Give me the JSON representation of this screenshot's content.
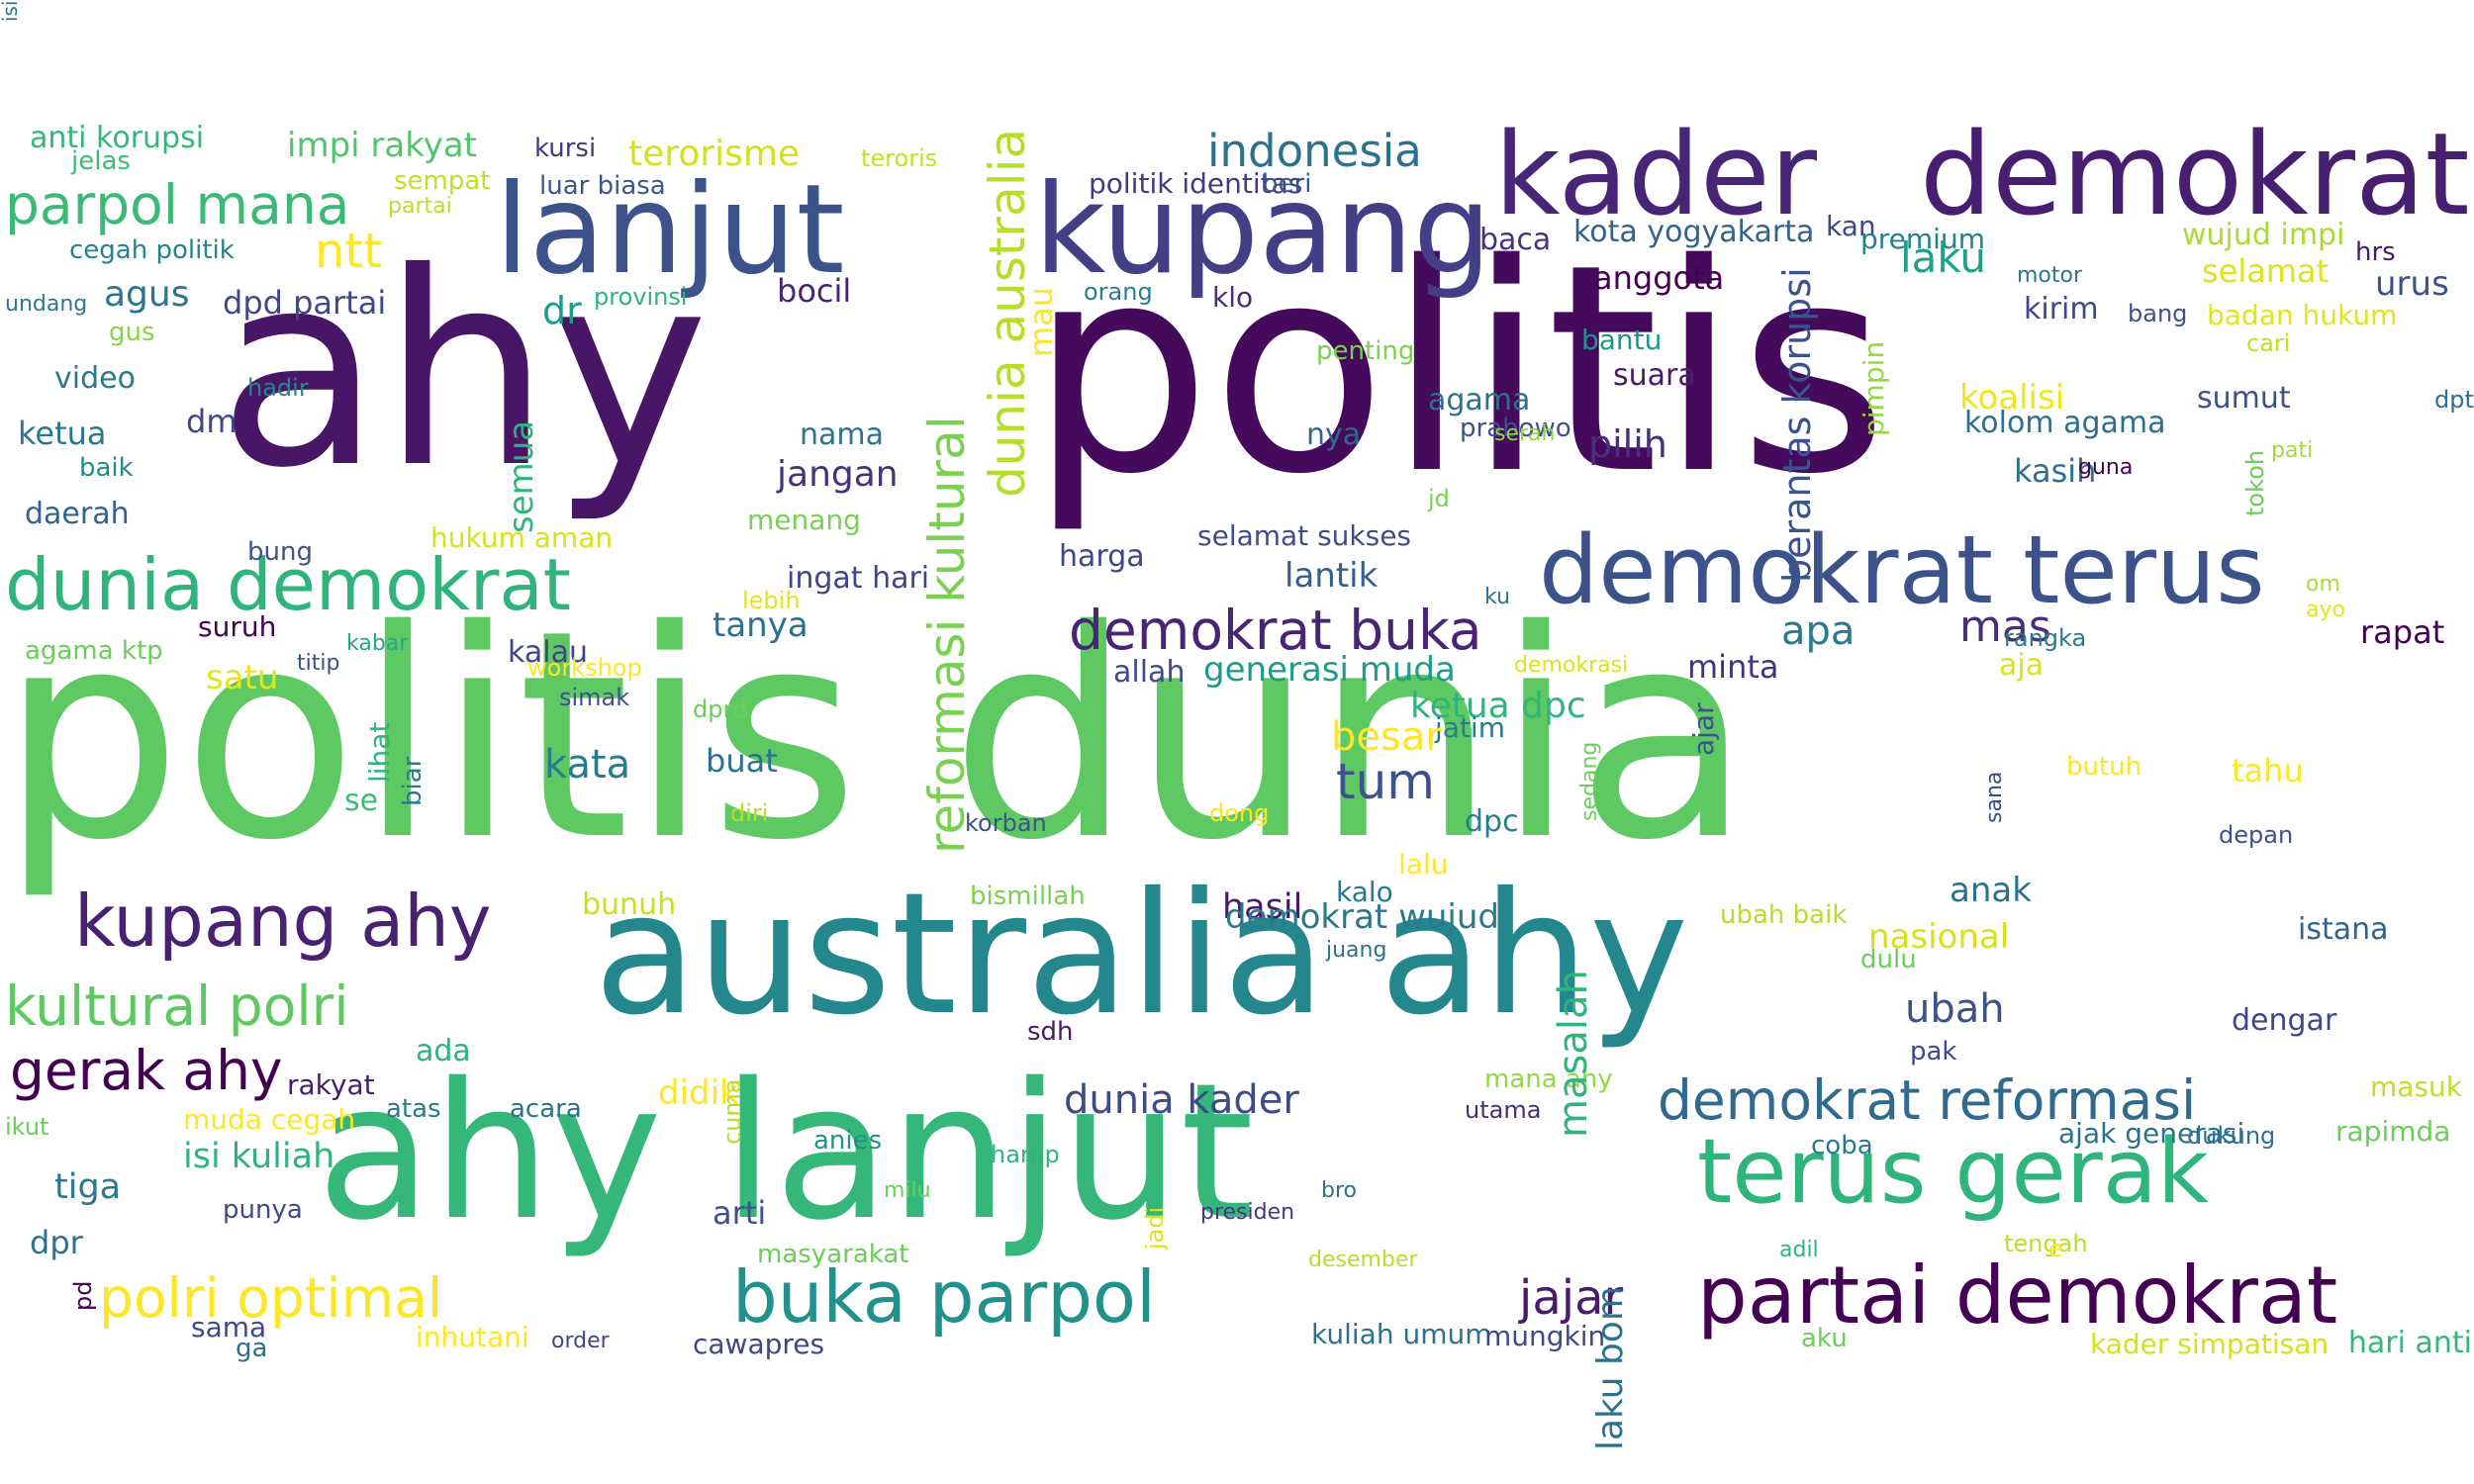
{
  "colors": {
    "background": "#ffffff",
    "palette": [
      "#440154",
      "#3b528b",
      "#21918c",
      "#5ec962",
      "#fde725"
    ]
  },
  "words": [
    {
      "text": "politis dunia",
      "color": "#5ec962",
      "vertical": false
    },
    {
      "text": "ahy",
      "color": "#481567",
      "vertical": false
    },
    {
      "text": "politis",
      "color": "#450a5c",
      "vertical": false
    },
    {
      "text": "australia ahy",
      "color": "#24878e",
      "vertical": false
    },
    {
      "text": "ahy lanjut",
      "color": "#35b779",
      "vertical": false
    },
    {
      "text": "lanjut",
      "color": "#3b528b",
      "vertical": false
    },
    {
      "text": "kupang",
      "color": "#433e85",
      "vertical": false
    },
    {
      "text": "kader",
      "color": "#482576",
      "vertical": false
    },
    {
      "text": "demokrat",
      "color": "#481f70",
      "vertical": false
    },
    {
      "text": "demokrat terus",
      "color": "#3b528b",
      "vertical": false
    },
    {
      "text": "terus gerak",
      "color": "#2fb47c",
      "vertical": false
    },
    {
      "text": "partai demokrat",
      "color": "#440154",
      "vertical": false
    },
    {
      "text": "dunia demokrat",
      "color": "#2fb47c",
      "vertical": false
    },
    {
      "text": "kupang ahy",
      "color": "#482173",
      "vertical": false
    },
    {
      "text": "buka parpol",
      "color": "#21918c",
      "vertical": false
    },
    {
      "text": "kultural polri",
      "color": "#5ec962",
      "vertical": false
    },
    {
      "text": "parpol mana",
      "color": "#3aba76",
      "vertical": false
    },
    {
      "text": "demokrat buka",
      "color": "#482475",
      "vertical": false
    },
    {
      "text": "demokrat reformasi",
      "color": "#306a8e",
      "vertical": false
    },
    {
      "text": "gerak ahy",
      "color": "#440154",
      "vertical": false
    },
    {
      "text": "polri optimal",
      "color": "#fde725",
      "vertical": false
    },
    {
      "text": "reformasi kultural",
      "color": "#7ad151",
      "vertical": true
    },
    {
      "text": "dunia australia",
      "color": "#b5de2b",
      "vertical": true
    },
    {
      "text": "indonesia",
      "color": "#2c728e",
      "vertical": false
    },
    {
      "text": "tum",
      "color": "#3b528b",
      "vertical": false
    },
    {
      "text": "ntt",
      "color": "#fde725",
      "vertical": false
    },
    {
      "text": "dunia kader",
      "color": "#3e4a89",
      "vertical": false
    },
    {
      "text": "anti korupsi",
      "color": "#35b779",
      "vertical": false
    },
    {
      "text": "impi rakyat",
      "color": "#52c569",
      "vertical": false
    },
    {
      "text": "terorisme",
      "color": "#d2e21b",
      "vertical": false
    },
    {
      "text": "teroris",
      "color": "#c8e020",
      "vertical": false
    },
    {
      "text": "politik identitas",
      "color": "#443983",
      "vertical": false
    },
    {
      "text": "beri",
      "color": "#39568c",
      "vertical": false
    },
    {
      "text": "kan",
      "color": "#3f4788",
      "vertical": false
    },
    {
      "text": "jelas",
      "color": "#3dbc74",
      "vertical": false
    },
    {
      "text": "sempat",
      "color": "#c2df23",
      "vertical": false
    },
    {
      "text": "luar biasa",
      "color": "#38588c",
      "vertical": false
    },
    {
      "text": "kursi",
      "color": "#453781",
      "vertical": false
    },
    {
      "text": "partai",
      "color": "#b8de29",
      "vertical": false
    },
    {
      "text": "cegah politik",
      "color": "#26828e",
      "vertical": false
    },
    {
      "text": "baca",
      "color": "#46327e",
      "vertical": false
    },
    {
      "text": "kota yogyakarta",
      "color": "#33638d",
      "vertical": false
    },
    {
      "text": "premium",
      "color": "#26818e",
      "vertical": false
    },
    {
      "text": "wujud impi",
      "color": "#a8db34",
      "vertical": false
    },
    {
      "text": "hrs",
      "color": "#481a6c",
      "vertical": false
    },
    {
      "text": "laku",
      "color": "#1fa187",
      "vertical": false
    },
    {
      "text": "selamat",
      "color": "#dde318",
      "vertical": false
    },
    {
      "text": "urus",
      "color": "#3b528b",
      "vertical": false
    },
    {
      "text": "undang",
      "color": "#2a788e",
      "vertical": false
    },
    {
      "text": "agus",
      "color": "#2a768e",
      "vertical": false
    },
    {
      "text": "dpd partai",
      "color": "#404688",
      "vertical": false
    },
    {
      "text": "dr",
      "color": "#1e9b8a",
      "vertical": false
    },
    {
      "text": "provinsi",
      "color": "#2fb47c",
      "vertical": false
    },
    {
      "text": "bocil",
      "color": "#482475",
      "vertical": false
    },
    {
      "text": "orang",
      "color": "#277f8e",
      "vertical": false
    },
    {
      "text": "klo",
      "color": "#472d7b",
      "vertical": false
    },
    {
      "text": "anggota",
      "color": "#440154",
      "vertical": false
    },
    {
      "text": "motor",
      "color": "#2a788e",
      "vertical": false
    },
    {
      "text": "kirim",
      "color": "#3e4989",
      "vertical": false
    },
    {
      "text": "bang",
      "color": "#3b528b",
      "vertical": false
    },
    {
      "text": "badan hukum",
      "color": "#e5e419",
      "vertical": false
    },
    {
      "text": "gus",
      "color": "#86d549",
      "vertical": false
    },
    {
      "text": "video",
      "color": "#29798e",
      "vertical": false
    },
    {
      "text": "hadir",
      "color": "#23888e",
      "vertical": false
    },
    {
      "text": "penting",
      "color": "#7ad151",
      "vertical": false
    },
    {
      "text": "bantu",
      "color": "#1f968b",
      "vertical": false
    },
    {
      "text": "cari",
      "color": "#c0df25",
      "vertical": false
    },
    {
      "text": "suara",
      "color": "#481b6d",
      "vertical": false
    },
    {
      "text": "koalisi",
      "color": "#f1e51d",
      "vertical": false
    },
    {
      "text": "sumut",
      "color": "#3b528b",
      "vertical": false
    },
    {
      "text": "dpt",
      "color": "#2e6e8e",
      "vertical": false
    },
    {
      "text": "ketua",
      "color": "#2a788e",
      "vertical": false
    },
    {
      "text": "dm",
      "color": "#404688",
      "vertical": false
    },
    {
      "text": "nama",
      "color": "#2c738e",
      "vertical": false
    },
    {
      "text": "nya",
      "color": "#31678e",
      "vertical": false
    },
    {
      "text": "agama",
      "color": "#2c718e",
      "vertical": false
    },
    {
      "text": "prabowo",
      "color": "#3b528b",
      "vertical": false
    },
    {
      "text": "serah",
      "color": "#8fd744",
      "vertical": false
    },
    {
      "text": "kolom agama",
      "color": "#2d708e",
      "vertical": false
    },
    {
      "text": "pilih",
      "color": "#472f7d",
      "vertical": false
    },
    {
      "text": "pati",
      "color": "#9fda3a",
      "vertical": false
    },
    {
      "text": "baik",
      "color": "#228d8d",
      "vertical": false
    },
    {
      "text": "jangan",
      "color": "#46327e",
      "vertical": false
    },
    {
      "text": "kasih",
      "color": "#2e6f8e",
      "vertical": false
    },
    {
      "text": "guna",
      "color": "#440154",
      "vertical": false
    },
    {
      "text": "daerah",
      "color": "#33628d",
      "vertical": false
    },
    {
      "text": "menang",
      "color": "#7ad151",
      "vertical": false
    },
    {
      "text": "jd",
      "color": "#7ad151",
      "vertical": false
    },
    {
      "text": "hukum aman",
      "color": "#d8e219",
      "vertical": false
    },
    {
      "text": "bung",
      "color": "#3b528b",
      "vertical": false
    },
    {
      "text": "harga",
      "color": "#404688",
      "vertical": false
    },
    {
      "text": "selamat sukses",
      "color": "#3e4c8a",
      "vertical": false
    },
    {
      "text": "lantik",
      "color": "#355f8d",
      "vertical": false
    },
    {
      "text": "ingat hari",
      "color": "#404688",
      "vertical": false
    },
    {
      "text": "lebih",
      "color": "#e5e419",
      "vertical": false
    },
    {
      "text": "ku",
      "color": "#2a788e",
      "vertical": false
    },
    {
      "text": "om",
      "color": "#addc30",
      "vertical": false
    },
    {
      "text": "ayo",
      "color": "#e5e419",
      "vertical": false
    },
    {
      "text": "suruh",
      "color": "#440154",
      "vertical": false
    },
    {
      "text": "kabar",
      "color": "#22a884",
      "vertical": false
    },
    {
      "text": "tanya",
      "color": "#2c718e",
      "vertical": false
    },
    {
      "text": "apa",
      "color": "#297a8e",
      "vertical": false
    },
    {
      "text": "mas",
      "color": "#472d7b",
      "vertical": false
    },
    {
      "text": "rangka",
      "color": "#2a788e",
      "vertical": false
    },
    {
      "text": "rapat",
      "color": "#440154",
      "vertical": false
    },
    {
      "text": "agama ktp",
      "color": "#6ccd5a",
      "vertical": false
    },
    {
      "text": "titip",
      "color": "#3b528b",
      "vertical": false
    },
    {
      "text": "kalau",
      "color": "#404688",
      "vertical": false
    },
    {
      "text": "workshop",
      "color": "#fde725",
      "vertical": false
    },
    {
      "text": "allah",
      "color": "#3e4a89",
      "vertical": false
    },
    {
      "text": "generasi muda",
      "color": "#1e9c89",
      "vertical": false
    },
    {
      "text": "demokrasi",
      "color": "#dde318",
      "vertical": false
    },
    {
      "text": "minta",
      "color": "#46337f",
      "vertical": false
    },
    {
      "text": "aja",
      "color": "#dde318",
      "vertical": false
    },
    {
      "text": "ketua dpc",
      "color": "#2fb47c",
      "vertical": false
    },
    {
      "text": "satu",
      "color": "#e7e419",
      "vertical": false
    },
    {
      "text": "simak",
      "color": "#3b528b",
      "vertical": false
    },
    {
      "text": "dprd",
      "color": "#6ccd5a",
      "vertical": false
    },
    {
      "text": "jatim",
      "color": "#287c8e",
      "vertical": false
    },
    {
      "text": "besar",
      "color": "#fde725",
      "vertical": false
    },
    {
      "text": "kata",
      "color": "#287c8e",
      "vertical": false
    },
    {
      "text": "buat",
      "color": "#2c718e",
      "vertical": false
    },
    {
      "text": "butuh",
      "color": "#fde725",
      "vertical": false
    },
    {
      "text": "tahu",
      "color": "#fde725",
      "vertical": false
    },
    {
      "text": "se",
      "color": "#3dbc74",
      "vertical": false
    },
    {
      "text": "diri",
      "color": "#b8de29",
      "vertical": false
    },
    {
      "text": "korban",
      "color": "#3b528b",
      "vertical": false
    },
    {
      "text": "dong",
      "color": "#fde725",
      "vertical": false
    },
    {
      "text": "dpc",
      "color": "#277f8e",
      "vertical": false
    },
    {
      "text": "depan",
      "color": "#3b528b",
      "vertical": false
    },
    {
      "text": "lalu",
      "color": "#fde725",
      "vertical": false
    },
    {
      "text": "kalo",
      "color": "#2a788e",
      "vertical": false
    },
    {
      "text": "hasil",
      "color": "#481a6c",
      "vertical": false
    },
    {
      "text": "anak",
      "color": "#2c718e",
      "vertical": false
    },
    {
      "text": "bismillah",
      "color": "#7ad151",
      "vertical": false
    },
    {
      "text": "bunuh",
      "color": "#c8e020",
      "vertical": false
    },
    {
      "text": "demokrat wujud",
      "color": "#2a788e",
      "vertical": false
    },
    {
      "text": "ubah baik",
      "color": "#b8de29",
      "vertical": false
    },
    {
      "text": "nasional",
      "color": "#d8e219",
      "vertical": false
    },
    {
      "text": "istana",
      "color": "#33638d",
      "vertical": false
    },
    {
      "text": "dulu",
      "color": "#6ccd5a",
      "vertical": false
    },
    {
      "text": "juang",
      "color": "#2c718e",
      "vertical": false
    },
    {
      "text": "ubah",
      "color": "#3b528b",
      "vertical": false
    },
    {
      "text": "pak",
      "color": "#404688",
      "vertical": false
    },
    {
      "text": "dengar",
      "color": "#404688",
      "vertical": false
    },
    {
      "text": "ada",
      "color": "#2fb47c",
      "vertical": false
    },
    {
      "text": "rakyat",
      "color": "#481b6d",
      "vertical": false
    },
    {
      "text": "atas",
      "color": "#2a788e",
      "vertical": false
    },
    {
      "text": "acara",
      "color": "#2c718e",
      "vertical": false
    },
    {
      "text": "didik",
      "color": "#fde725",
      "vertical": false
    },
    {
      "text": "mana ahy",
      "color": "#93d741",
      "vertical": false
    },
    {
      "text": "utama",
      "color": "#472d7b",
      "vertical": false
    },
    {
      "text": "masuk",
      "color": "#c2df23",
      "vertical": false
    },
    {
      "text": "ikut",
      "color": "#6ccd5a",
      "vertical": false
    },
    {
      "text": "muda cegah",
      "color": "#fde725",
      "vertical": false
    },
    {
      "text": "isi kuliah",
      "color": "#2fb47c",
      "vertical": false
    },
    {
      "text": "anies",
      "color": "#20928c",
      "vertical": false
    },
    {
      "text": "harap",
      "color": "#2fb47c",
      "vertical": false
    },
    {
      "text": "coba",
      "color": "#2a788e",
      "vertical": false
    },
    {
      "text": "ajak generasi",
      "color": "#2c718e",
      "vertical": false
    },
    {
      "text": "dukung",
      "color": "#2c718e",
      "vertical": false
    },
    {
      "text": "rapimda",
      "color": "#6ccd5a",
      "vertical": false
    },
    {
      "text": "tiga",
      "color": "#2a788e",
      "vertical": false
    },
    {
      "text": "punya",
      "color": "#3e4a89",
      "vertical": false
    },
    {
      "text": "milu",
      "color": "#6ccd5a",
      "vertical": false
    },
    {
      "text": "bro",
      "color": "#2c718e",
      "vertical": false
    },
    {
      "text": "arti",
      "color": "#3b528b",
      "vertical": false
    },
    {
      "text": "presiden",
      "color": "#443983",
      "vertical": false
    },
    {
      "text": "dpr",
      "color": "#2c718e",
      "vertical": false
    },
    {
      "text": "masyarakat",
      "color": "#6ccd5a",
      "vertical": false
    },
    {
      "text": "desember",
      "color": "#b8de29",
      "vertical": false
    },
    {
      "text": "adil",
      "color": "#2fb47c",
      "vertical": false
    },
    {
      "text": "tengah",
      "color": "#b8de29",
      "vertical": false
    },
    {
      "text": "e",
      "color": "#fde725",
      "vertical": false
    },
    {
      "text": "jajar",
      "color": "#481b6d",
      "vertical": false
    },
    {
      "text": "sama",
      "color": "#3e4a89",
      "vertical": false
    },
    {
      "text": "ga",
      "color": "#2c718e",
      "vertical": false
    },
    {
      "text": "inhutani",
      "color": "#fde725",
      "vertical": false
    },
    {
      "text": "order",
      "color": "#404688",
      "vertical": false
    },
    {
      "text": "cawapres",
      "color": "#404688",
      "vertical": false
    },
    {
      "text": "kuliah umum",
      "color": "#2c718e",
      "vertical": false
    },
    {
      "text": "mungkin",
      "color": "#3e4a89",
      "vertical": false
    },
    {
      "text": "aku",
      "color": "#6ccd5a",
      "vertical": false
    },
    {
      "text": "kader simpatisan",
      "color": "#d2e21b",
      "vertical": false
    },
    {
      "text": "hari anti",
      "color": "#35b779",
      "vertical": false
    },
    {
      "text": "sdh",
      "color": "#481b6d",
      "vertical": false
    },
    {
      "text": "cuma",
      "color": "#b8de29",
      "vertical": true
    },
    {
      "text": "masalah",
      "color": "#2fb47c",
      "vertical": true
    },
    {
      "text": "jadi",
      "color": "#d8e219",
      "vertical": true
    },
    {
      "text": "laku bom",
      "color": "#2c718e",
      "vertical": true
    },
    {
      "text": "pd",
      "color": "#440154",
      "vertical": true
    },
    {
      "text": "lihat",
      "color": "#2fb47c",
      "vertical": true
    },
    {
      "text": "biar",
      "color": "#2a788e",
      "vertical": true
    },
    {
      "text": "semua",
      "color": "#2fb47c",
      "vertical": true
    },
    {
      "text": "mau",
      "color": "#fde725",
      "vertical": true
    },
    {
      "text": "berantas korupsi",
      "color": "#3b528b",
      "vertical": true
    },
    {
      "text": "pimpin",
      "color": "#93d741",
      "vertical": true
    },
    {
      "text": "tokoh",
      "color": "#6ccd5a",
      "vertical": true
    },
    {
      "text": "ajar",
      "color": "#3b528b",
      "vertical": true
    },
    {
      "text": "sedang",
      "color": "#6ccd5a",
      "vertical": true
    },
    {
      "text": "sana",
      "color": "#3e4a89",
      "vertical": true
    },
    {
      "text": "isi",
      "color": "#2a788e",
      "vertical": true
    }
  ]
}
